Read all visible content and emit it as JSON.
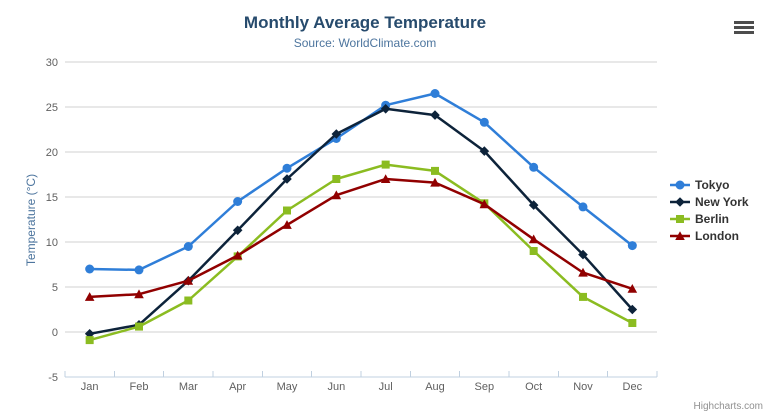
{
  "credits": "Highcharts.com",
  "theme": {
    "background": "#ffffff",
    "title_color": "#274b6d",
    "subtitle_color": "#4d759e",
    "axis_title_color": "#4d759e",
    "axis_label_color": "#606060",
    "grid_color": "#d0d0d0",
    "axis_line_color": "#c0d0e0",
    "legend_text_color": "#333333",
    "credits_color": "#909090"
  },
  "chart_data": {
    "type": "line",
    "title": "Monthly Average Temperature",
    "subtitle": "Source: WorldClimate.com",
    "xlabel": "",
    "ylabel": "Temperature (°C)",
    "categories": [
      "Jan",
      "Feb",
      "Mar",
      "Apr",
      "May",
      "Jun",
      "Jul",
      "Aug",
      "Sep",
      "Oct",
      "Nov",
      "Dec"
    ],
    "ylim": [
      -5,
      30
    ],
    "yticks": [
      -5,
      0,
      5,
      10,
      15,
      20,
      25,
      30
    ],
    "grid": true,
    "legend_position": "right",
    "series": [
      {
        "name": "Tokyo",
        "color": "#2f7ed8",
        "marker": "circle",
        "values": [
          7.0,
          6.9,
          9.5,
          14.5,
          18.2,
          21.5,
          25.2,
          26.5,
          23.3,
          18.3,
          13.9,
          9.6
        ]
      },
      {
        "name": "New York",
        "color": "#0d233a",
        "marker": "diamond",
        "values": [
          -0.2,
          0.8,
          5.7,
          11.3,
          17.0,
          22.0,
          24.8,
          24.1,
          20.1,
          14.1,
          8.6,
          2.5
        ]
      },
      {
        "name": "Berlin",
        "color": "#8bbc21",
        "marker": "square",
        "values": [
          -0.9,
          0.6,
          3.5,
          8.4,
          13.5,
          17.0,
          18.6,
          17.9,
          14.3,
          9.0,
          3.9,
          1.0
        ]
      },
      {
        "name": "London",
        "color": "#910000",
        "marker": "triangle",
        "values": [
          3.9,
          4.2,
          5.7,
          8.5,
          11.9,
          15.2,
          17.0,
          16.6,
          14.2,
          10.3,
          6.6,
          4.8
        ]
      }
    ]
  }
}
